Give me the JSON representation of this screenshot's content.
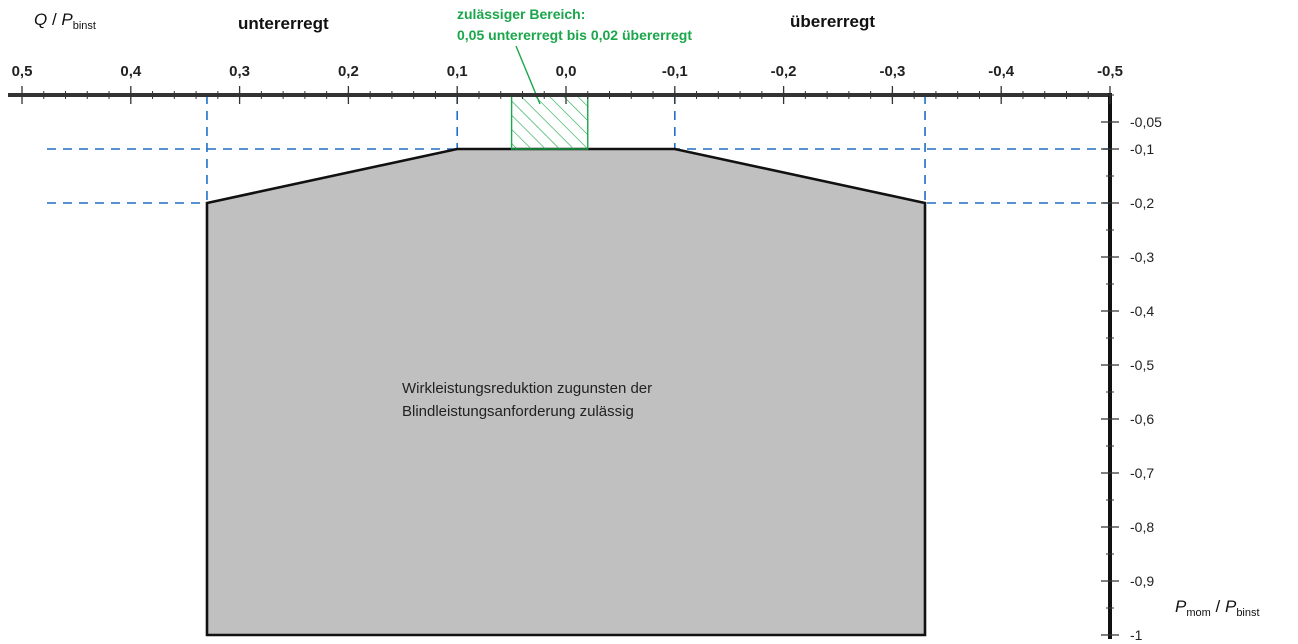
{
  "chart_data": {
    "type": "area",
    "x_axis": {
      "label_main": "Q",
      "label_slash": " / ",
      "label_var": "P",
      "label_sub": "binst",
      "range": [
        0.5,
        -0.5
      ],
      "ticks": [
        0.5,
        0.4,
        0.3,
        0.2,
        0.1,
        0.0,
        -0.1,
        -0.2,
        -0.3,
        -0.4,
        -0.5
      ],
      "tick_labels": [
        "0,5",
        "0,4",
        "0,3",
        "0,2",
        "0,1",
        "0,0",
        "-0,1",
        "-0,2",
        "-0,3",
        "-0,4",
        "-0,5"
      ],
      "minor_step": 0.02
    },
    "y_axis": {
      "label_var1": "P",
      "label_sub1": "mom",
      "label_slash": " / ",
      "label_var2": "P",
      "label_sub2": "binst",
      "range": [
        0,
        -1
      ],
      "ticks": [
        -0.05,
        -0.1,
        -0.2,
        -0.3,
        -0.4,
        -0.5,
        -0.6,
        -0.7,
        -0.8,
        -0.9,
        -1.0
      ],
      "tick_labels": [
        "-0,05",
        "-0,1",
        "-0,2",
        "-0,3",
        "-0,4",
        "-0,5",
        "-0,6",
        "-0,7",
        "-0,8",
        "-0,9",
        "-1"
      ],
      "minor_step": 0.05
    },
    "headers": {
      "left": "untererregt",
      "right": "übererregt"
    },
    "allowed_zone": {
      "title": "zulässiger Bereich:",
      "subtitle": "0,05 untererregt bis 0,02 übererregt",
      "x_range": [
        0.05,
        -0.02
      ],
      "y_range": [
        0,
        -0.1
      ],
      "color": "#1aa64a"
    },
    "region": {
      "polygon": [
        [
          0.33,
          -1.0
        ],
        [
          0.33,
          -0.2
        ],
        [
          0.1,
          -0.1
        ],
        [
          -0.1,
          -0.1
        ],
        [
          -0.33,
          -0.2
        ],
        [
          -0.33,
          -1.0
        ]
      ],
      "label_line1": "Wirkleistungsreduktion zugunsten der",
      "label_line2": "Blindleistungsanforderung zulässig",
      "fill": "#c0c0c0"
    },
    "reference_lines": {
      "vertical_x": [
        0.33,
        0.1,
        -0.1,
        -0.33
      ],
      "horizontal_y": [
        -0.1,
        -0.2
      ],
      "color": "#1f6fc4"
    }
  }
}
